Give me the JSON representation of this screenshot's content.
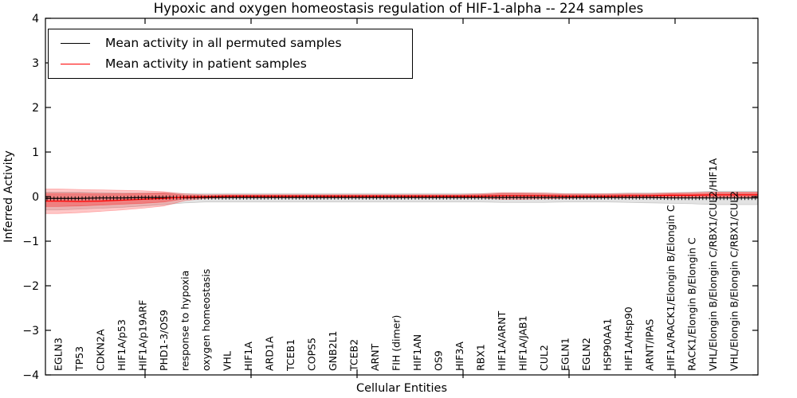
{
  "title": "Hypoxic and oxygen homeostasis regulation of HIF-1-alpha -- 224 samples",
  "legend": {
    "items": [
      {
        "label": "Mean activity in all permuted samples",
        "color": "#000000"
      },
      {
        "label": "Mean activity in patient samples",
        "color": "#ff0000"
      }
    ]
  },
  "axes": {
    "ylabel": "Inferred Activity",
    "xlabel": "Cellular Entities",
    "yticks": [
      4,
      3,
      2,
      1,
      0,
      -1,
      -2,
      -3,
      -4
    ],
    "ytick_labels": [
      "4",
      "3",
      "2",
      "1",
      "0",
      "−1",
      "−2",
      "−3",
      "−4"
    ],
    "ylim": [
      -4,
      4
    ]
  },
  "chart_data": {
    "type": "line",
    "title": "Hypoxic and oxygen homeostasis regulation of HIF-1-alpha -- 224 samples",
    "xlabel": "Cellular Entities",
    "ylabel": "Inferred Activity",
    "ylim": [
      -4,
      4
    ],
    "grid": false,
    "legend_position": "upper left",
    "categories": [
      "EGLN3",
      "TP53",
      "CDKN2A",
      "HIF1A/p53",
      "HIF1A/p19ARF",
      "PHD1-3/OS9",
      "response to hypoxia",
      "oxygen homeostasis",
      "VHL",
      "HIF1A",
      "ARD1A",
      "TCEB1",
      "COPS5",
      "GNB2L1",
      "TCEB2",
      "ARNT",
      "FIH (dimer)",
      "HIF1AN",
      "OS9",
      "HIF3A",
      "RBX1",
      "HIF1A/ARNT",
      "HIF1A/JAB1",
      "CUL2",
      "EGLN1",
      "EGLN2",
      "HSP90AA1",
      "HIF1A/Hsp90",
      "ARNT/IPAS",
      "HIF1A/RACK1/Elongin B/Elongin C",
      "RACK1/Elongin B/Elongin C",
      "VHL/Elongin B/Elongin C/RBX1/CUL2/HIF1A",
      "VHL/Elongin B/Elongin C/RBX1/CUL2"
    ],
    "series": [
      {
        "name": "Mean activity in all permuted samples",
        "color": "#000000",
        "values": [
          -0.04,
          -0.04,
          -0.03,
          -0.03,
          -0.02,
          -0.02,
          -0.02,
          -0.02,
          -0.02,
          -0.02,
          -0.02,
          -0.02,
          -0.02,
          -0.02,
          -0.02,
          -0.02,
          -0.02,
          -0.02,
          -0.02,
          -0.02,
          -0.02,
          -0.02,
          -0.02,
          -0.02,
          -0.02,
          -0.02,
          -0.02,
          -0.02,
          -0.02,
          -0.03,
          -0.03,
          -0.03,
          -0.03
        ]
      },
      {
        "name": "Mean activity in patient samples",
        "color": "#ff0000",
        "values": [
          -0.1,
          -0.11,
          -0.1,
          -0.08,
          -0.06,
          -0.04,
          -0.01,
          0.0,
          0.01,
          0.01,
          0.01,
          0.01,
          0.01,
          0.01,
          0.01,
          0.01,
          0.01,
          0.01,
          0.01,
          0.01,
          0.01,
          0.02,
          0.02,
          0.02,
          0.01,
          0.01,
          0.01,
          0.02,
          0.02,
          0.03,
          0.03,
          0.04,
          0.04
        ]
      }
    ],
    "bands": [
      {
        "name": "permuted-samples-range",
        "color": "#000000",
        "alpha": 0.11,
        "upper": [
          0.1,
          0.1,
          0.09,
          0.08,
          0.08,
          0.08,
          0.07,
          0.07,
          0.07,
          0.07,
          0.07,
          0.07,
          0.07,
          0.07,
          0.07,
          0.07,
          0.07,
          0.07,
          0.07,
          0.07,
          0.07,
          0.08,
          0.08,
          0.08,
          0.07,
          0.07,
          0.07,
          0.08,
          0.08,
          0.09,
          0.1,
          0.12,
          0.12
        ],
        "lower": [
          -0.3,
          -0.28,
          -0.26,
          -0.24,
          -0.21,
          -0.18,
          -0.14,
          -0.12,
          -0.12,
          -0.12,
          -0.12,
          -0.12,
          -0.12,
          -0.12,
          -0.12,
          -0.12,
          -0.12,
          -0.12,
          -0.12,
          -0.12,
          -0.12,
          -0.13,
          -0.13,
          -0.13,
          -0.12,
          -0.12,
          -0.12,
          -0.13,
          -0.14,
          -0.15,
          -0.16,
          -0.18,
          -0.18
        ]
      },
      {
        "name": "patient-samples-range-outer",
        "color": "#ff0000",
        "alpha": 0.22,
        "upper": [
          0.17,
          0.16,
          0.15,
          0.14,
          0.13,
          0.11,
          0.06,
          0.04,
          0.05,
          0.05,
          0.05,
          0.05,
          0.05,
          0.05,
          0.05,
          0.05,
          0.05,
          0.05,
          0.05,
          0.05,
          0.06,
          0.09,
          0.09,
          0.08,
          0.06,
          0.06,
          0.06,
          0.07,
          0.07,
          0.08,
          0.09,
          0.1,
          0.1
        ],
        "lower": [
          -0.38,
          -0.36,
          -0.33,
          -0.3,
          -0.26,
          -0.21,
          -0.09,
          -0.04,
          -0.03,
          -0.03,
          -0.03,
          -0.03,
          -0.03,
          -0.03,
          -0.03,
          -0.03,
          -0.03,
          -0.03,
          -0.03,
          -0.03,
          -0.03,
          -0.06,
          -0.06,
          -0.05,
          -0.04,
          -0.03,
          -0.03,
          -0.03,
          -0.03,
          -0.03,
          -0.03,
          -0.02,
          -0.02
        ]
      },
      {
        "name": "patient-samples-range-inner",
        "color": "#ff0000",
        "alpha": 0.28,
        "upper": [
          0.07,
          0.07,
          0.06,
          0.06,
          0.07,
          0.08,
          0.03,
          0.02,
          0.03,
          0.03,
          0.03,
          0.03,
          0.03,
          0.03,
          0.03,
          0.03,
          0.03,
          0.03,
          0.03,
          0.03,
          0.04,
          0.06,
          0.06,
          0.05,
          0.04,
          0.04,
          0.04,
          0.05,
          0.05,
          0.06,
          0.06,
          0.08,
          0.08
        ],
        "lower": [
          -0.22,
          -0.21,
          -0.19,
          -0.17,
          -0.15,
          -0.12,
          -0.05,
          -0.02,
          -0.01,
          -0.01,
          -0.01,
          -0.01,
          -0.01,
          -0.01,
          -0.01,
          -0.01,
          -0.01,
          -0.01,
          -0.01,
          -0.01,
          -0.01,
          -0.03,
          -0.03,
          -0.02,
          -0.02,
          -0.01,
          -0.01,
          -0.01,
          -0.01,
          -0.01,
          -0.01,
          0.0,
          0.0
        ]
      }
    ]
  }
}
